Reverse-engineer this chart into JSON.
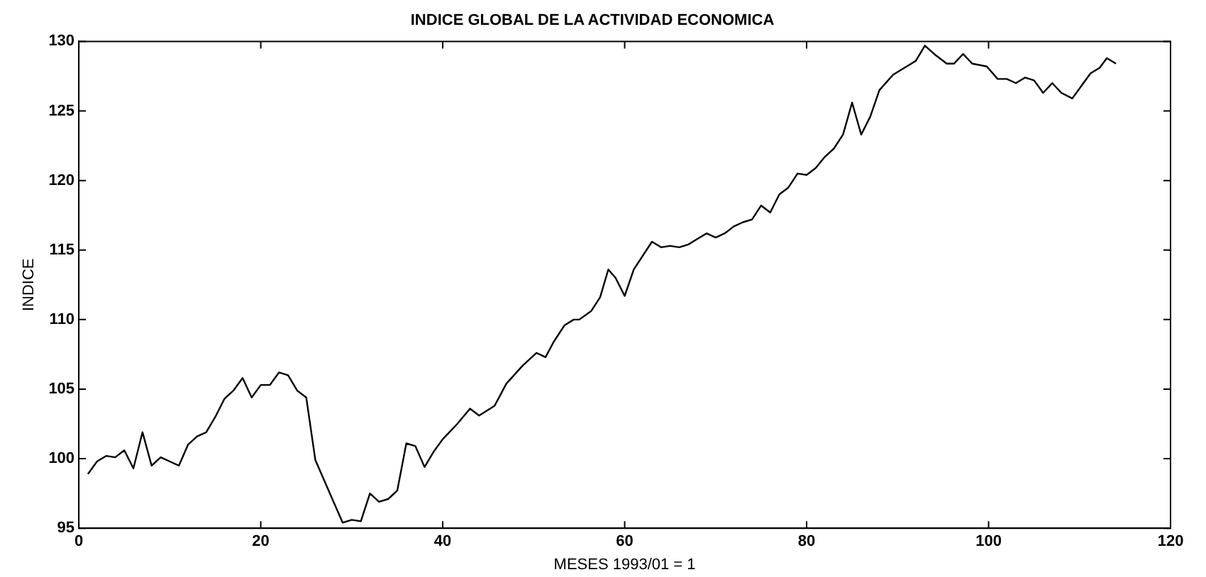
{
  "chart_data": {
    "type": "line",
    "title": "INDICE GLOBAL DE LA ACTIVIDAD ECONOMICA",
    "xlabel": "MESES 1993/01 = 1",
    "ylabel": "INDICE",
    "xlim": [
      0,
      120
    ],
    "xticks": [
      0,
      20,
      40,
      60,
      80,
      100,
      120
    ],
    "ylim": [
      95,
      130
    ],
    "yticks": [
      95,
      100,
      105,
      110,
      115,
      120,
      125,
      130
    ],
    "grid": false,
    "legend": false,
    "marker": "none",
    "line_style": "solid",
    "series": [
      {
        "color": "#000000",
        "x": [
          1,
          2,
          3,
          4,
          5,
          6,
          7,
          8,
          9,
          10,
          11,
          12,
          13,
          14,
          15,
          16,
          17,
          18,
          19,
          20,
          21,
          22,
          23,
          24,
          25,
          26,
          27,
          28,
          29,
          30,
          31,
          32,
          33,
          34,
          35,
          36,
          37,
          38,
          39,
          40,
          41.6,
          43,
          44,
          45.7,
          47,
          48.8,
          50.3,
          51.3,
          52.2,
          53.4,
          54.4,
          55,
          56.3,
          57.3,
          58.2,
          59,
          60,
          61,
          63,
          64,
          65,
          66,
          67,
          68,
          69,
          70,
          71,
          72,
          73,
          74,
          75,
          76,
          77,
          78,
          79,
          80,
          81,
          82,
          83,
          84,
          85,
          86,
          87,
          88,
          89.5,
          91,
          92,
          93,
          94.2,
          95.4,
          96.2,
          97.2,
          98.2,
          99.8,
          101,
          102,
          103,
          104,
          105,
          106,
          107,
          108,
          109.2,
          110.2,
          111.2,
          112.2,
          113,
          114
        ],
        "values": [
          98.9,
          99.8,
          100.2,
          100.1,
          100.6,
          99.3,
          101.9,
          99.5,
          100.1,
          99.8,
          99.5,
          101.0,
          101.6,
          101.9,
          103.0,
          104.3,
          104.9,
          105.8,
          104.4,
          105.3,
          105.3,
          106.2,
          106.0,
          104.9,
          104.4,
          99.9,
          98.4,
          96.9,
          95.4,
          95.6,
          95.5,
          97.5,
          96.9,
          97.1,
          97.7,
          101.1,
          100.9,
          99.4,
          100.5,
          101.4,
          102.5,
          103.6,
          103.1,
          103.8,
          105.4,
          106.7,
          107.6,
          107.3,
          108.4,
          109.6,
          110.0,
          110.0,
          110.6,
          111.6,
          113.6,
          113.0,
          111.7,
          113.6,
          115.6,
          115.2,
          115.3,
          115.2,
          115.4,
          115.8,
          116.2,
          115.9,
          116.2,
          116.7,
          117.0,
          117.2,
          118.2,
          117.7,
          119.0,
          119.5,
          120.5,
          120.4,
          120.9,
          121.7,
          122.3,
          123.3,
          125.6,
          123.3,
          124.6,
          126.5,
          127.6,
          128.2,
          128.6,
          129.7,
          129.0,
          128.4,
          128.4,
          129.1,
          128.4,
          128.2,
          127.3,
          127.3,
          127.0,
          127.4,
          127.2,
          126.3,
          127.0,
          126.3,
          125.9,
          126.8,
          127.7,
          128.1,
          128.8,
          128.4
        ]
      }
    ]
  }
}
